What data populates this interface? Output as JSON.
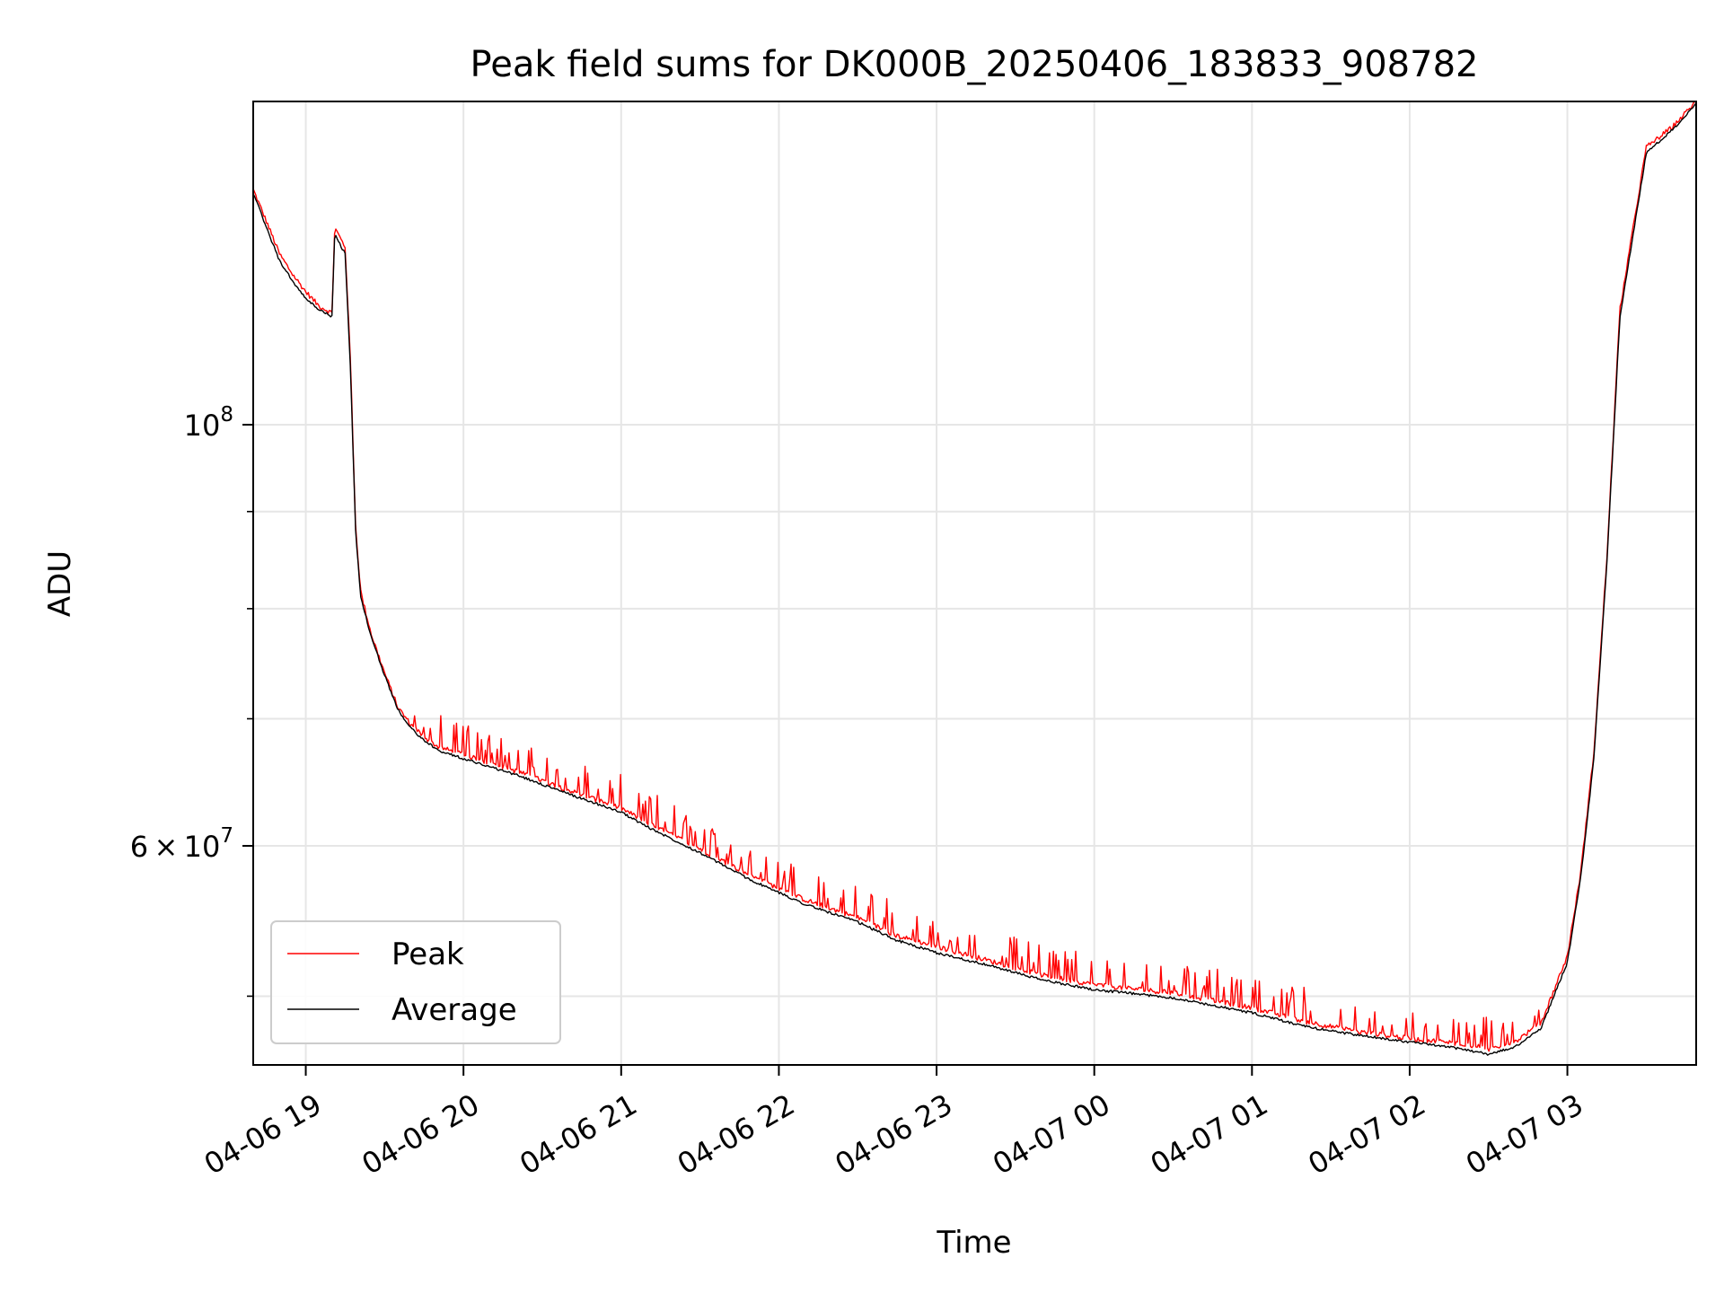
{
  "chart_data": {
    "type": "line",
    "title": "Peak field sums for DK000B_20250406_183833_908782",
    "xlabel": "Time",
    "ylabel": "ADU",
    "y_scale": "log",
    "grid": true,
    "legend_position": "lower-left",
    "xlim": [
      "2025-04-06 18:40",
      "2025-04-07 03:49"
    ],
    "ylim": [
      46000000,
      148000000
    ],
    "x_ticks": [
      {
        "value": "2025-04-06 19:00",
        "label": "04-06 19"
      },
      {
        "value": "2025-04-06 20:00",
        "label": "04-06 20"
      },
      {
        "value": "2025-04-06 21:00",
        "label": "04-06 21"
      },
      {
        "value": "2025-04-06 22:00",
        "label": "04-06 22"
      },
      {
        "value": "2025-04-06 23:00",
        "label": "04-06 23"
      },
      {
        "value": "2025-04-07 00:00",
        "label": "04-07 00"
      },
      {
        "value": "2025-04-07 01:00",
        "label": "04-07 01"
      },
      {
        "value": "2025-04-07 02:00",
        "label": "04-07 02"
      },
      {
        "value": "2025-04-07 03:00",
        "label": "04-07 03"
      }
    ],
    "y_major_ticks": [
      {
        "value": 100000000,
        "base": "10",
        "exp": "8",
        "mult": ""
      },
      {
        "value": 60000000,
        "base": "10",
        "exp": "7",
        "mult": "6 × "
      }
    ],
    "y_minor_ticks": [
      50000000,
      70000000,
      80000000,
      90000000
    ],
    "series": [
      {
        "name": "Peak",
        "color": "#ff0000",
        "x": [
          "2025-04-06 18:40",
          "2025-04-06 18:45",
          "2025-04-06 18:50",
          "2025-04-06 18:55",
          "2025-04-06 19:00",
          "2025-04-06 19:05",
          "2025-04-06 19:10",
          "2025-04-06 19:11",
          "2025-04-06 19:15",
          "2025-04-06 19:17",
          "2025-04-06 19:19",
          "2025-04-06 19:21",
          "2025-04-06 19:25",
          "2025-04-06 19:30",
          "2025-04-06 19:35",
          "2025-04-06 19:40",
          "2025-04-06 19:45",
          "2025-04-06 19:50",
          "2025-04-06 20:00",
          "2025-04-06 20:20",
          "2025-04-06 20:40",
          "2025-04-06 21:00",
          "2025-04-06 21:10",
          "2025-04-06 21:30",
          "2025-04-06 21:50",
          "2025-04-06 22:10",
          "2025-04-06 22:30",
          "2025-04-06 22:45",
          "2025-04-06 23:00",
          "2025-04-06 23:20",
          "2025-04-06 23:40",
          "2025-04-07 00:00",
          "2025-04-07 00:30",
          "2025-04-07 01:00",
          "2025-04-07 01:20",
          "2025-04-07 01:40",
          "2025-04-07 02:00",
          "2025-04-07 02:20",
          "2025-04-07 02:30",
          "2025-04-07 02:40",
          "2025-04-07 02:50",
          "2025-04-07 03:00",
          "2025-04-07 03:05",
          "2025-04-07 03:10",
          "2025-04-07 03:15",
          "2025-04-07 03:20",
          "2025-04-07 03:30",
          "2025-04-07 03:40",
          "2025-04-07 03:49"
        ],
        "y": [
          133000000,
          128000000,
          123000000,
          120000000,
          117500000,
          115500000,
          114500000,
          127000000,
          124000000,
          108000000,
          88000000,
          81500000,
          77500000,
          74000000,
          71000000,
          69500000,
          68500000,
          67700000,
          67000000,
          65700000,
          64200000,
          62800000,
          61700000,
          59800000,
          57800000,
          56200000,
          55000000,
          53800000,
          53100000,
          52200000,
          51300000,
          50700000,
          50200000,
          49300000,
          48500000,
          47900000,
          47500000,
          47200000,
          46900000,
          47300000,
          48400000,
          52500000,
          58000000,
          67000000,
          85000000,
          115000000,
          140000000,
          143500000,
          148000000
        ]
      },
      {
        "name": "Average",
        "color": "#000000",
        "x": [
          "2025-04-06 18:40",
          "2025-04-06 18:45",
          "2025-04-06 18:50",
          "2025-04-06 18:55",
          "2025-04-06 19:00",
          "2025-04-06 19:05",
          "2025-04-06 19:10",
          "2025-04-06 19:11",
          "2025-04-06 19:15",
          "2025-04-06 19:17",
          "2025-04-06 19:19",
          "2025-04-06 19:21",
          "2025-04-06 19:25",
          "2025-04-06 19:30",
          "2025-04-06 19:35",
          "2025-04-06 19:40",
          "2025-04-06 19:45",
          "2025-04-06 19:50",
          "2025-04-06 20:00",
          "2025-04-06 20:20",
          "2025-04-06 20:40",
          "2025-04-06 21:00",
          "2025-04-06 21:10",
          "2025-04-06 21:30",
          "2025-04-06 21:50",
          "2025-04-06 22:10",
          "2025-04-06 22:30",
          "2025-04-06 22:45",
          "2025-04-06 23:00",
          "2025-04-06 23:20",
          "2025-04-06 23:40",
          "2025-04-07 00:00",
          "2025-04-07 00:30",
          "2025-04-07 01:00",
          "2025-04-07 01:20",
          "2025-04-07 01:40",
          "2025-04-07 02:00",
          "2025-04-07 02:20",
          "2025-04-07 02:30",
          "2025-04-07 02:40",
          "2025-04-07 02:50",
          "2025-04-07 03:00",
          "2025-04-07 03:05",
          "2025-04-07 03:10",
          "2025-04-07 03:15",
          "2025-04-07 03:20",
          "2025-04-07 03:30",
          "2025-04-07 03:40",
          "2025-04-07 03:49"
        ],
        "y": [
          132500000,
          127000000,
          122000000,
          119000000,
          116500000,
          115000000,
          114000000,
          126000000,
          123000000,
          107000000,
          87500000,
          81000000,
          77200000,
          73800000,
          70800000,
          69200000,
          68200000,
          67400000,
          66700000,
          65400000,
          63900000,
          62500000,
          61400000,
          59500000,
          57500000,
          55900000,
          54700000,
          53500000,
          52700000,
          51900000,
          51000000,
          50400000,
          49900000,
          49000000,
          48200000,
          47700000,
          47300000,
          46900000,
          46600000,
          47000000,
          48100000,
          52100000,
          57600000,
          66500000,
          84500000,
          114000000,
          139000000,
          143000000,
          147500000
        ]
      }
    ]
  }
}
